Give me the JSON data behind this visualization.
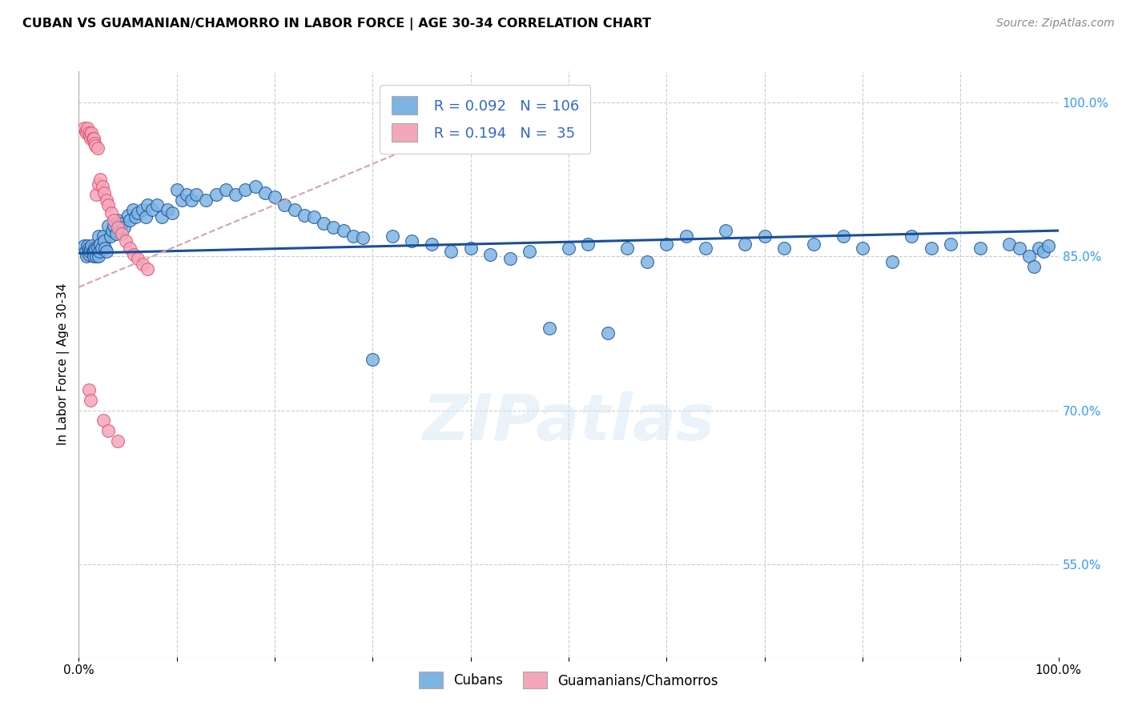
{
  "title": "CUBAN VS GUAMANIAN/CHAMORRO IN LABOR FORCE | AGE 30-34 CORRELATION CHART",
  "source": "Source: ZipAtlas.com",
  "ylabel": "In Labor Force | Age 30-34",
  "xlim": [
    0.0,
    1.0
  ],
  "ylim": [
    0.46,
    1.03
  ],
  "x_ticks": [
    0.0,
    0.1,
    0.2,
    0.3,
    0.4,
    0.5,
    0.6,
    0.7,
    0.8,
    0.9,
    1.0
  ],
  "x_tick_labels": [
    "0.0%",
    "",
    "",
    "",
    "",
    "",
    "",
    "",
    "",
    "",
    "100.0%"
  ],
  "y_tick_labels_right": [
    "55.0%",
    "70.0%",
    "85.0%",
    "100.0%"
  ],
  "y_ticks_right": [
    0.55,
    0.7,
    0.85,
    1.0
  ],
  "legend_R_cubans": "0.092",
  "legend_N_cubans": "106",
  "legend_R_guam": "0.194",
  "legend_N_guam": "35",
  "watermark": "ZIPatlas",
  "blue_color": "#7EB4E2",
  "pink_color": "#F4A7B9",
  "blue_line_color": "#1A4F9C",
  "pink_line_color": "#E05070",
  "trend_line_dash_color": "#D8A0B0",
  "cubans_x": [
    0.005,
    0.007,
    0.008,
    0.009,
    0.01,
    0.01,
    0.011,
    0.012,
    0.013,
    0.014,
    0.015,
    0.015,
    0.016,
    0.017,
    0.018,
    0.019,
    0.02,
    0.02,
    0.021,
    0.022,
    0.023,
    0.025,
    0.026,
    0.027,
    0.028,
    0.03,
    0.032,
    0.034,
    0.036,
    0.038,
    0.04,
    0.042,
    0.044,
    0.046,
    0.05,
    0.052,
    0.055,
    0.058,
    0.06,
    0.065,
    0.068,
    0.07,
    0.075,
    0.08,
    0.085,
    0.09,
    0.095,
    0.1,
    0.105,
    0.11,
    0.115,
    0.12,
    0.13,
    0.14,
    0.15,
    0.16,
    0.17,
    0.18,
    0.19,
    0.2,
    0.21,
    0.22,
    0.23,
    0.24,
    0.25,
    0.26,
    0.27,
    0.28,
    0.29,
    0.3,
    0.32,
    0.34,
    0.36,
    0.38,
    0.4,
    0.42,
    0.44,
    0.46,
    0.48,
    0.5,
    0.52,
    0.54,
    0.56,
    0.58,
    0.6,
    0.62,
    0.64,
    0.66,
    0.68,
    0.7,
    0.72,
    0.75,
    0.78,
    0.8,
    0.83,
    0.85,
    0.87,
    0.89,
    0.92,
    0.95,
    0.96,
    0.97,
    0.975,
    0.98,
    0.985,
    0.99
  ],
  "cubans_y": [
    0.86,
    0.855,
    0.85,
    0.86,
    0.858,
    0.852,
    0.855,
    0.857,
    0.86,
    0.855,
    0.855,
    0.85,
    0.858,
    0.856,
    0.85,
    0.858,
    0.87,
    0.85,
    0.855,
    0.862,
    0.858,
    0.87,
    0.865,
    0.858,
    0.855,
    0.88,
    0.87,
    0.875,
    0.88,
    0.872,
    0.885,
    0.878,
    0.882,
    0.878,
    0.89,
    0.885,
    0.895,
    0.888,
    0.892,
    0.895,
    0.888,
    0.9,
    0.895,
    0.9,
    0.888,
    0.895,
    0.892,
    0.915,
    0.905,
    0.91,
    0.905,
    0.91,
    0.905,
    0.91,
    0.915,
    0.91,
    0.915,
    0.918,
    0.912,
    0.908,
    0.9,
    0.895,
    0.89,
    0.888,
    0.882,
    0.878,
    0.875,
    0.87,
    0.868,
    0.75,
    0.87,
    0.865,
    0.862,
    0.855,
    0.858,
    0.852,
    0.848,
    0.855,
    0.78,
    0.858,
    0.862,
    0.775,
    0.858,
    0.845,
    0.862,
    0.87,
    0.858,
    0.875,
    0.862,
    0.87,
    0.858,
    0.862,
    0.87,
    0.858,
    0.845,
    0.87,
    0.858,
    0.862,
    0.858,
    0.862,
    0.858,
    0.85,
    0.84,
    0.858,
    0.855,
    0.86
  ],
  "guam_x": [
    0.005,
    0.007,
    0.008,
    0.009,
    0.01,
    0.011,
    0.012,
    0.013,
    0.014,
    0.015,
    0.016,
    0.017,
    0.018,
    0.019,
    0.02,
    0.022,
    0.024,
    0.026,
    0.028,
    0.03,
    0.033,
    0.036,
    0.04,
    0.044,
    0.048,
    0.052,
    0.056,
    0.06,
    0.065,
    0.07,
    0.01,
    0.012,
    0.025,
    0.03,
    0.04
  ],
  "guam_y": [
    0.975,
    0.972,
    0.97,
    0.975,
    0.97,
    0.968,
    0.965,
    0.97,
    0.965,
    0.965,
    0.96,
    0.958,
    0.91,
    0.955,
    0.92,
    0.925,
    0.918,
    0.912,
    0.905,
    0.9,
    0.892,
    0.885,
    0.878,
    0.872,
    0.865,
    0.858,
    0.852,
    0.848,
    0.842,
    0.838,
    0.72,
    0.71,
    0.69,
    0.68,
    0.67
  ]
}
